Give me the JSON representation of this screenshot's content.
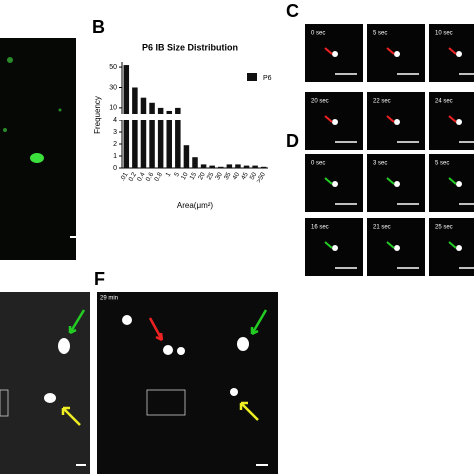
{
  "panels": {
    "b": "B",
    "c": "C",
    "d": "D",
    "f": "F"
  },
  "c_times": [
    "0 sec",
    "5 sec",
    "10 sec",
    "20 sec",
    "22 sec",
    "24 sec"
  ],
  "d_times": [
    "0 sec",
    "3 sec",
    "5 sec",
    "16 sec",
    "21 sec",
    "25 sec"
  ],
  "f_time": "29 min",
  "chart_data": {
    "type": "bar",
    "title": "P6 IB Size  Distribution",
    "y_label": "Frequency",
    "x_label": "Area(μm²)",
    "categories": [
      ".01",
      "0.2",
      "0.4",
      "0.6",
      "0.8",
      "1",
      "5",
      "10",
      "15",
      "20",
      "25",
      "30",
      "35",
      "40",
      "45",
      "50",
      ">50"
    ],
    "series": [
      {
        "name": "P6",
        "color": "#111111",
        "values": [
          52,
          30,
          20,
          15,
          10,
          7,
          10,
          1.9,
          0.9,
          0.3,
          0.2,
          0.1,
          0.3,
          0.3,
          0.2,
          0.2,
          0.1
        ]
      }
    ],
    "ylim_lower": [
      0,
      4
    ],
    "yticks_lower": [
      0,
      1,
      2,
      3,
      4
    ],
    "ylim_upper": [
      4,
      55
    ],
    "yticks_upper": [
      10,
      30,
      50
    ],
    "legend": "upper right"
  }
}
